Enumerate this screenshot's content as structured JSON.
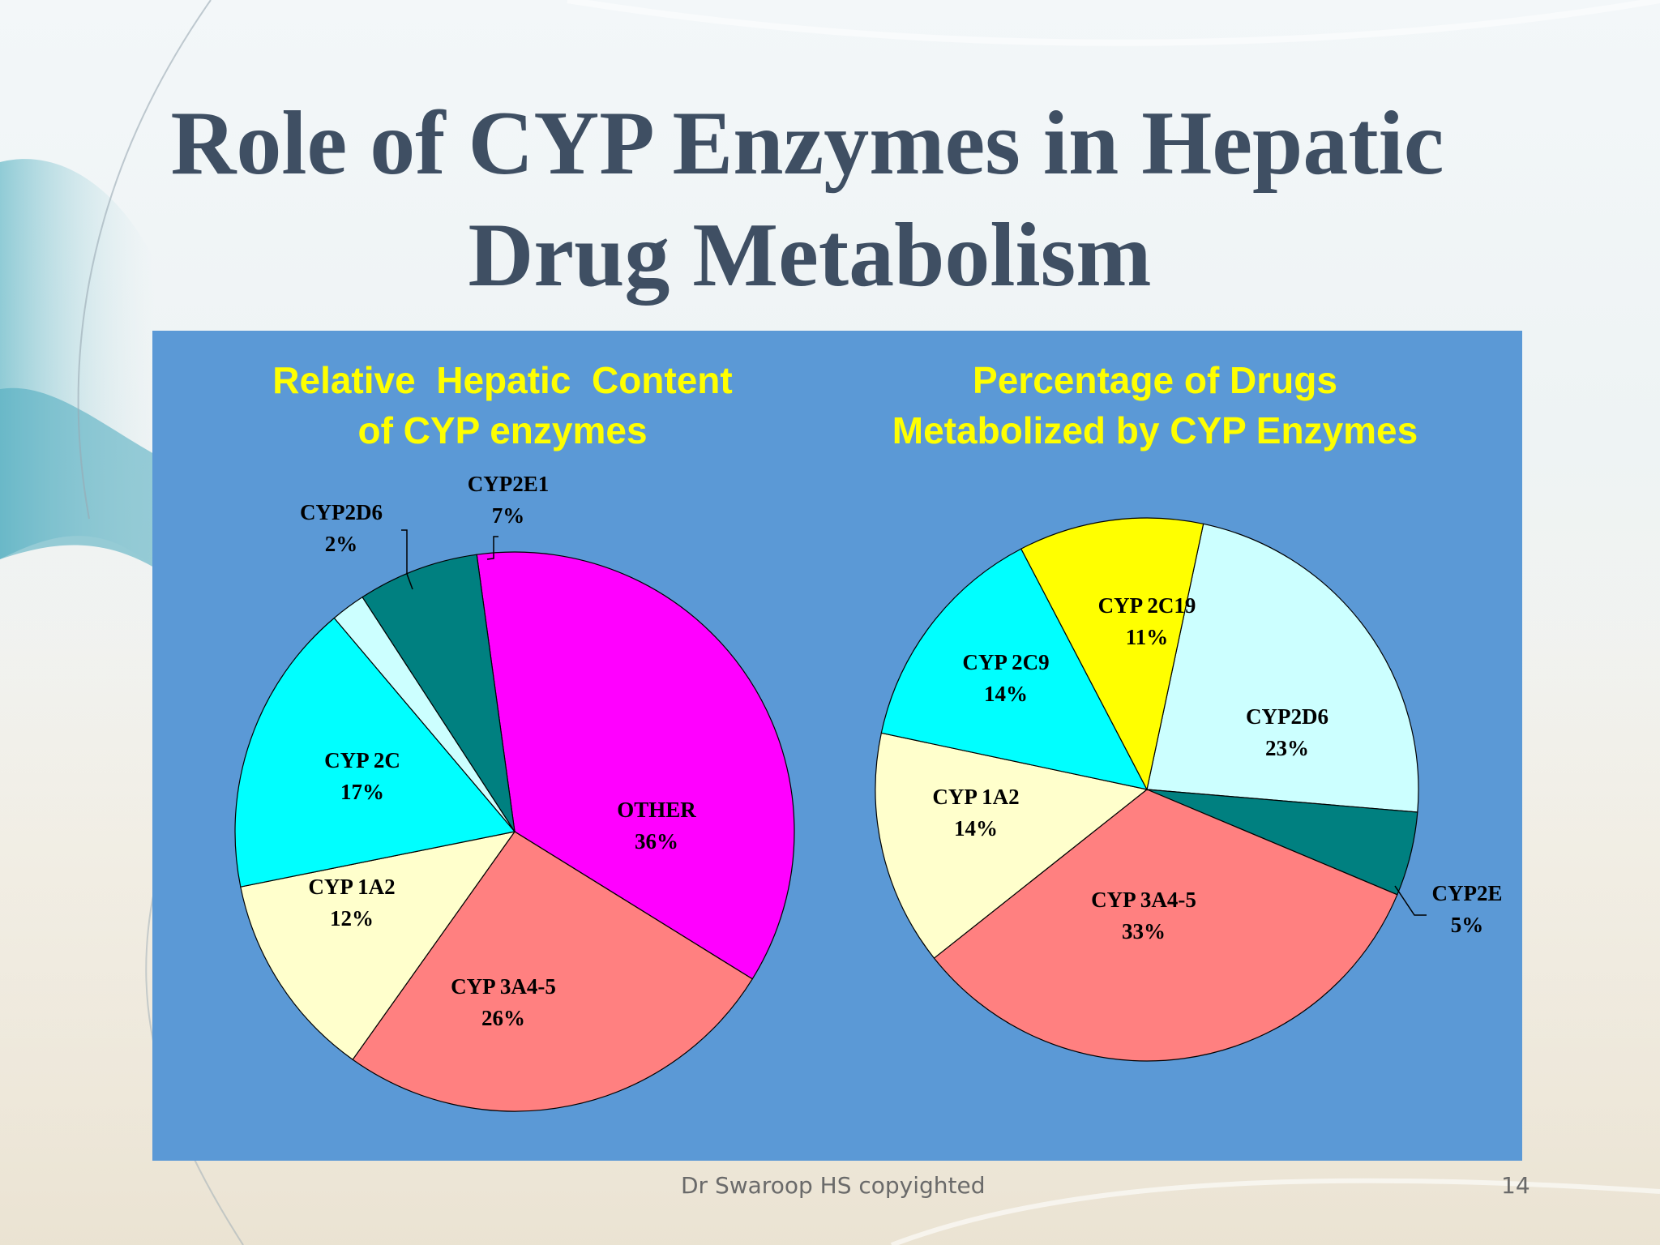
{
  "slide": {
    "title_line1": "Role of CYP Enzymes in Hepatic",
    "title_line2": "Drug Metabolism",
    "footer_text": "Dr Swaroop HS copyighted",
    "page_number": "14"
  },
  "chart_data": [
    {
      "type": "pie",
      "title_line1": "Relative  Hepatic  Content",
      "title_line2": "of CYP enzymes",
      "slices": [
        {
          "name": "OTHER",
          "value": 36,
          "label": "36%",
          "color": "#ff00ff"
        },
        {
          "name": "CYP 3A4-5",
          "value": 26,
          "label": "26%",
          "color": "#ff8080"
        },
        {
          "name": "CYP 1A2",
          "value": 12,
          "label": "12%",
          "color": "#ffffcc"
        },
        {
          "name": "CYP 2C",
          "value": 17,
          "label": "17%",
          "color": "#00ffff"
        },
        {
          "name": "CYP2D6",
          "value": 2,
          "label": "2%",
          "color": "#ccffff"
        },
        {
          "name": "CYP2E1",
          "value": 7,
          "label": "7%",
          "color": "#008080"
        }
      ]
    },
    {
      "type": "pie",
      "title_line1": "Percentage of Drugs",
      "title_line2": "Metabolized by CYP Enzymes",
      "slices": [
        {
          "name": "CYP2D6",
          "value": 23,
          "label": "23%",
          "color": "#ccffff"
        },
        {
          "name": "CYP2E",
          "value": 5,
          "label": "5%",
          "color": "#008080"
        },
        {
          "name": "CYP 3A4-5",
          "value": 33,
          "label": "33%",
          "color": "#ff8080"
        },
        {
          "name": "CYP 1A2",
          "value": 14,
          "label": "14%",
          "color": "#ffffcc"
        },
        {
          "name": "CYP 2C9",
          "value": 14,
          "label": "14%",
          "color": "#00ffff"
        },
        {
          "name": "CYP 2C19",
          "value": 11,
          "label": "11%",
          "color": "#ffff00"
        }
      ]
    }
  ]
}
